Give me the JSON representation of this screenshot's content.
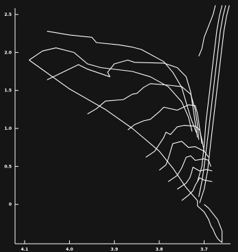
{
  "chart_data": {
    "type": "line",
    "title": "",
    "xlabel": "",
    "ylabel": "",
    "xlim": [
      4.1,
      3.62
    ],
    "ylim": [
      -0.5,
      2.6
    ],
    "grid": false,
    "x_ticks": [
      "4.1",
      "4.0",
      "3.9",
      "3.8",
      "3.7"
    ],
    "y_ticks": [
      "2.5",
      "2.0",
      "1.5",
      "1.0",
      "0.5",
      "0"
    ],
    "x_tick_values": [
      4.1,
      4.0,
      3.9,
      3.8,
      3.7
    ],
    "y_tick_values": [
      2.5,
      2.0,
      1.5,
      1.0,
      0.5,
      0.0
    ],
    "series": [
      {
        "x": [
          3.727,
          3.735,
          3.75,
          3.78,
          3.82,
          3.86,
          3.93,
          3.96,
          3.99,
          4.03,
          4.06,
          4.09
        ],
        "y": [
          0.96,
          1.15,
          1.35,
          1.55,
          1.68,
          1.75,
          1.8,
          1.85,
          2.0,
          2.06,
          2.02,
          1.9
        ]
      },
      {
        "x": [
          3.717,
          3.73,
          3.74,
          3.75,
          3.77,
          3.79,
          3.84,
          3.86,
          3.89,
          3.94,
          3.95,
          4.0,
          4.05
        ],
        "y": [
          0.94,
          1.14,
          1.34,
          1.54,
          1.74,
          1.88,
          2.04,
          2.07,
          2.1,
          2.13,
          2.2,
          2.23,
          2.28
        ]
      },
      {
        "x": [
          3.715,
          3.72,
          3.725,
          3.73,
          3.74,
          3.76,
          3.79,
          3.855,
          3.87,
          3.9,
          3.915,
          3.91,
          3.96,
          3.98,
          4.05
        ],
        "y": [
          0.88,
          1.08,
          1.28,
          1.48,
          1.68,
          1.8,
          1.86,
          1.87,
          1.9,
          1.85,
          1.74,
          1.68,
          1.78,
          1.84,
          1.64
        ]
      },
      {
        "x": [
          3.712,
          3.715,
          3.72,
          3.73,
          3.75,
          3.78,
          3.82,
          3.835,
          3.85,
          3.86,
          3.88,
          3.92,
          3.94,
          3.96
        ],
        "y": [
          0.85,
          1.05,
          1.25,
          1.45,
          1.55,
          1.57,
          1.59,
          1.54,
          1.46,
          1.45,
          1.38,
          1.36,
          1.26,
          1.19
        ]
      },
      {
        "x": [
          3.705,
          3.71,
          3.715,
          3.72,
          3.735,
          3.76,
          3.79,
          3.8,
          3.82,
          3.835,
          3.855,
          3.87
        ],
        "y": [
          0.8,
          1.0,
          1.2,
          1.3,
          1.31,
          1.24,
          1.28,
          1.22,
          1.12,
          1.1,
          1.05,
          0.98
        ]
      },
      {
        "x": [
          3.7,
          3.705,
          3.71,
          3.72,
          3.745,
          3.76,
          3.775,
          3.785,
          3.79,
          3.81,
          3.83
        ],
        "y": [
          0.7,
          0.85,
          0.98,
          1.03,
          1.04,
          1.02,
          0.92,
          0.95,
          0.88,
          0.7,
          0.62
        ]
      },
      {
        "x": [
          3.69,
          3.7,
          3.72,
          3.735,
          3.75,
          3.77,
          3.775,
          3.78,
          3.785,
          3.8
        ],
        "y": [
          0.62,
          0.7,
          0.76,
          0.75,
          0.83,
          0.8,
          0.7,
          0.6,
          0.52,
          0.45
        ]
      },
      {
        "x": [
          3.685,
          3.69,
          3.7,
          3.72,
          3.73,
          3.74,
          3.745,
          3.75,
          3.76,
          3.78
        ],
        "y": [
          0.5,
          0.58,
          0.6,
          0.58,
          0.64,
          0.62,
          0.55,
          0.48,
          0.38,
          0.3
        ]
      },
      {
        "x": [
          3.682,
          3.695,
          3.71,
          3.725,
          3.728,
          3.732,
          3.74,
          3.76
        ],
        "y": [
          0.44,
          0.46,
          0.44,
          0.49,
          0.42,
          0.35,
          0.28,
          0.2
        ]
      },
      {
        "x": [
          3.682,
          3.7,
          3.71,
          3.715,
          3.72,
          3.725,
          3.735,
          3.75
        ],
        "y": [
          0.3,
          0.32,
          0.35,
          0.3,
          0.25,
          0.18,
          0.12,
          0.05
        ]
      },
      {
        "x": [
          3.66,
          3.666,
          3.672,
          3.678,
          3.684,
          3.69,
          3.696,
          3.7,
          3.705,
          3.715
        ],
        "y": [
          2.62,
          2.48,
          2.28,
          1.98,
          1.68,
          1.38,
          1.08,
          0.78,
          0.5,
          0.3
        ]
      },
      {
        "x": [
          3.652,
          3.658,
          3.664,
          3.67,
          3.676,
          3.682,
          3.688,
          3.694,
          3.7,
          3.705,
          3.712
        ],
        "y": [
          2.62,
          2.48,
          2.28,
          1.98,
          1.68,
          1.38,
          1.08,
          0.78,
          0.5,
          0.3,
          0.1
        ]
      },
      {
        "x": [
          3.644,
          3.65,
          3.656,
          3.662,
          3.668,
          3.674,
          3.68,
          3.686,
          3.692,
          3.7,
          3.71
        ],
        "y": [
          2.62,
          2.48,
          2.28,
          1.98,
          1.68,
          1.38,
          1.08,
          0.78,
          0.45,
          0.2,
          0.02
        ]
      },
      {
        "x": [
          3.675,
          3.68,
          3.69,
          3.7,
          3.705,
          3.712
        ],
        "y": [
          2.62,
          2.5,
          2.35,
          2.2,
          2.05,
          1.95
        ]
      },
      {
        "x": [
          4.09,
          4.0,
          3.92,
          3.86,
          3.8,
          3.77,
          3.74,
          3.715,
          3.715,
          3.7,
          3.69,
          3.685,
          3.68,
          3.675,
          3.67,
          3.665,
          3.66,
          3.66,
          3.67,
          3.69,
          3.7
        ],
        "y": [
          1.9,
          1.52,
          1.25,
          1.0,
          0.7,
          0.48,
          0.22,
          0.05,
          -0.02,
          -0.1,
          -0.2,
          -0.28,
          -0.33,
          -0.4,
          -0.45,
          -0.48,
          -0.5,
          -0.35,
          -0.2,
          -0.05,
          0.0
        ]
      }
    ]
  }
}
